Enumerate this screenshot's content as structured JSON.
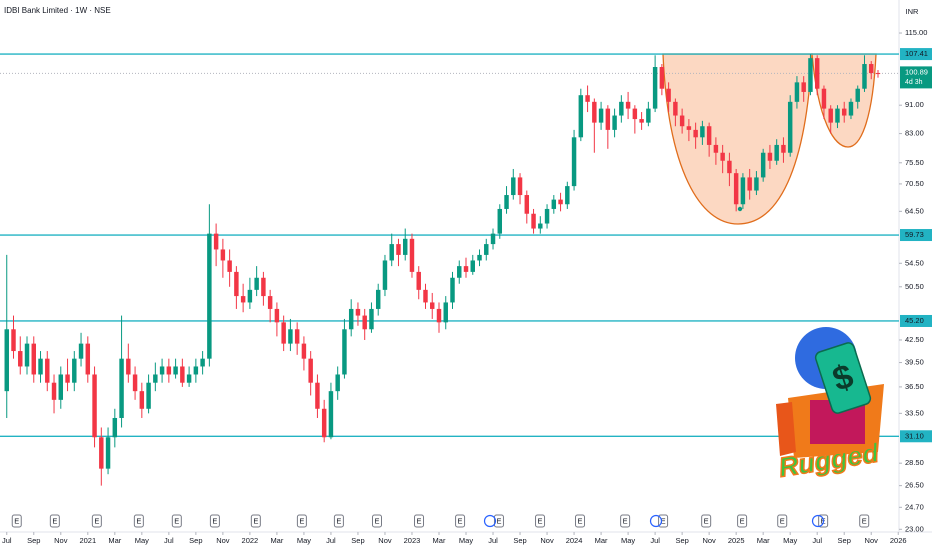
{
  "chart_data": {
    "type": "candlestick",
    "title": "IDBI Bank Limited · 1W · NSE",
    "currency": "INR",
    "x": [
      0,
      0.5,
      1,
      1.5,
      2,
      2.5,
      3,
      3.5,
      4,
      4.5,
      5,
      5.5,
      6,
      6.5,
      7,
      7.5,
      8,
      8.5,
      9,
      9.5,
      10,
      10.5,
      11,
      11.5,
      12,
      12.5,
      13,
      13.5,
      14,
      14.5,
      15,
      15.5,
      16,
      16.5,
      17,
      17.5,
      18,
      18.5,
      19,
      19.5,
      20,
      20.5,
      21,
      21.5,
      22,
      22.5,
      23,
      23.5,
      24,
      24.5,
      25,
      25.5,
      26,
      26.5,
      27,
      27.5,
      28,
      28.5,
      29,
      29.5,
      30,
      30.5,
      31,
      31.5,
      32,
      32.5,
      33,
      33.5,
      34,
      34.5,
      35,
      35.5,
      36,
      36.5,
      37,
      37.5,
      38,
      38.5,
      39,
      39.5,
      40,
      40.5,
      41,
      41.5,
      42,
      42.5,
      43,
      43.5,
      44,
      44.5,
      45,
      45.5,
      46,
      46.5,
      47,
      47.5,
      48,
      48.5,
      49,
      49.5,
      50,
      50.5,
      51,
      51.5,
      52,
      52.5,
      53,
      53.5,
      54,
      54.5,
      55,
      55.5,
      56,
      56.5,
      57,
      57.5,
      58,
      58.5,
      59,
      59.5,
      60,
      60.5,
      61,
      61.5,
      62,
      62.5,
      63,
      63.5,
      64,
      64.5
    ],
    "open": [
      36,
      44,
      41,
      39,
      42,
      38,
      40,
      37,
      35,
      38,
      37,
      40,
      42,
      38,
      31,
      28,
      31,
      33,
      40,
      38,
      36,
      34,
      37,
      38,
      39,
      38,
      39,
      37,
      38,
      39,
      40,
      60,
      57,
      55,
      53,
      49,
      48,
      50,
      52,
      49,
      47,
      45,
      42,
      44,
      42,
      40,
      37,
      34,
      31,
      36,
      38,
      44,
      47,
      46,
      44,
      47,
      50,
      55,
      58,
      56,
      59,
      53,
      50,
      48,
      47,
      45,
      48,
      52,
      54,
      53,
      55,
      56,
      58,
      60,
      65,
      68,
      72,
      68,
      64,
      61,
      62,
      65,
      67,
      66,
      70,
      82,
      94,
      92,
      86,
      90,
      84,
      88,
      92,
      90,
      87,
      86,
      90,
      103,
      96,
      92,
      88,
      85,
      84,
      82,
      85,
      80,
      78,
      76,
      73,
      66,
      72,
      69,
      72,
      78,
      76,
      80,
      78,
      92,
      98,
      95,
      106,
      96,
      90,
      86,
      90,
      88,
      92,
      96,
      104,
      101
    ],
    "high": [
      56,
      46,
      43,
      43,
      43,
      41,
      41,
      38,
      39,
      40,
      41,
      43.5,
      43,
      39,
      32,
      32,
      34,
      46,
      42,
      39,
      37,
      38,
      39.5,
      40,
      40,
      40,
      40,
      39,
      40,
      41,
      66,
      62,
      59,
      57,
      54,
      51,
      52,
      54,
      53,
      50,
      48,
      46,
      45.5,
      45,
      43,
      41,
      38,
      35,
      37,
      39,
      45.5,
      48.5,
      48,
      47,
      48,
      51,
      56,
      60,
      59,
      61,
      60,
      54,
      51,
      49.5,
      48,
      49,
      53,
      55,
      55.5,
      56,
      57,
      59,
      61,
      66,
      70,
      74,
      73,
      69,
      65,
      63.5,
      66,
      68,
      68.5,
      71,
      84,
      96,
      97,
      93,
      92,
      91,
      90,
      94,
      95,
      91,
      89,
      92,
      107,
      104,
      98,
      93,
      90,
      87,
      86,
      86.5,
      86,
      82,
      80,
      78,
      74,
      73,
      74,
      73.5,
      79,
      80,
      81.5,
      82,
      94,
      100,
      100,
      107.41,
      107,
      97,
      91,
      91,
      92,
      93,
      97,
      107,
      105,
      102
    ],
    "low": [
      33,
      40,
      38,
      38,
      37,
      37,
      36,
      33.5,
      34,
      36,
      36,
      39,
      37,
      30,
      26.5,
      27.5,
      30,
      32,
      37,
      35,
      33,
      33.5,
      36,
      37,
      37,
      37.5,
      36.5,
      36.5,
      37,
      38,
      39,
      54,
      52,
      50.5,
      47,
      46.5,
      47,
      49,
      47.5,
      45,
      43,
      41,
      41,
      40.5,
      38.5,
      35.5,
      33,
      30.5,
      30.8,
      35,
      37.5,
      43,
      44.5,
      42.5,
      43.5,
      46,
      49,
      54,
      54,
      55,
      52,
      48.5,
      47,
      45.5,
      43.5,
      44,
      47,
      51,
      52,
      52.5,
      54,
      55,
      57,
      59,
      64,
      67,
      66,
      62,
      60,
      60,
      61,
      64,
      64.5,
      65,
      69,
      81,
      89,
      78,
      84,
      79,
      82,
      86,
      87,
      83,
      84,
      85,
      89,
      94,
      89,
      85,
      83,
      81,
      79,
      80,
      77,
      75,
      73,
      70,
      64.5,
      65,
      67,
      68,
      71,
      74,
      75,
      75.5,
      77,
      90,
      92,
      94,
      94,
      87,
      83,
      84.5,
      86,
      87,
      90,
      95,
      99,
      99.5
    ],
    "close": [
      44,
      41,
      39,
      42,
      38,
      40,
      37,
      35,
      38,
      37,
      40,
      42,
      38,
      31,
      28,
      31,
      33,
      40,
      38,
      36,
      34,
      37,
      38,
      39,
      38,
      39,
      37,
      38,
      39,
      40,
      60,
      57,
      55,
      53,
      49,
      48,
      50,
      52,
      49,
      47,
      45,
      42,
      44,
      42,
      40,
      37,
      34,
      31,
      36,
      38,
      44,
      47,
      46,
      44,
      47,
      50,
      55,
      58,
      56,
      59,
      53,
      50,
      48,
      47,
      45,
      48,
      52,
      54,
      53,
      55,
      56,
      58,
      60,
      65,
      68,
      72,
      68,
      64,
      61,
      62,
      65,
      67,
      66,
      70,
      82,
      94,
      92,
      86,
      90,
      84,
      88,
      92,
      90,
      87,
      86,
      90,
      103,
      96,
      92,
      88,
      85,
      84,
      82,
      85,
      80,
      78,
      76,
      73,
      66,
      72,
      69,
      72,
      78,
      76,
      80,
      78,
      92,
      98,
      95,
      106,
      96,
      90,
      86,
      90,
      88,
      92,
      96,
      104,
      101,
      100.89
    ],
    "up_color": "#089981",
    "down_color": "#f23645",
    "xlim": [
      -0.5,
      66.1
    ],
    "xticks": [
      {
        "value": 0,
        "label": "Jul"
      },
      {
        "value": 2,
        "label": "Sep"
      },
      {
        "value": 4,
        "label": "Nov"
      },
      {
        "value": 6,
        "label": "2021"
      },
      {
        "value": 8,
        "label": "Mar"
      },
      {
        "value": 10,
        "label": "May"
      },
      {
        "value": 12,
        "label": "Jul"
      },
      {
        "value": 14,
        "label": "Sep"
      },
      {
        "value": 16,
        "label": "Nov"
      },
      {
        "value": 18,
        "label": "2022"
      },
      {
        "value": 20,
        "label": "Mar"
      },
      {
        "value": 22,
        "label": "May"
      },
      {
        "value": 24,
        "label": "Jul"
      },
      {
        "value": 26,
        "label": "Sep"
      },
      {
        "value": 28,
        "label": "Nov"
      },
      {
        "value": 30,
        "label": "2023"
      },
      {
        "value": 32,
        "label": "Mar"
      },
      {
        "value": 34,
        "label": "May"
      },
      {
        "value": 36,
        "label": "Jul"
      },
      {
        "value": 38,
        "label": "Sep"
      },
      {
        "value": 40,
        "label": "Nov"
      },
      {
        "value": 42,
        "label": "2024"
      },
      {
        "value": 44,
        "label": "Mar"
      },
      {
        "value": 46,
        "label": "May"
      },
      {
        "value": 48,
        "label": "Jul"
      },
      {
        "value": 50,
        "label": "Sep"
      },
      {
        "value": 52,
        "label": "Nov"
      },
      {
        "value": 54,
        "label": "2025"
      },
      {
        "value": 56,
        "label": "Mar"
      },
      {
        "value": 58,
        "label": "May"
      },
      {
        "value": 60,
        "label": "Jul"
      },
      {
        "value": 62,
        "label": "Sep"
      },
      {
        "value": 64,
        "label": "Nov"
      },
      {
        "value": 66,
        "label": "2026"
      }
    ],
    "ylim": [
      22.8,
      128
    ],
    "yscale": "log",
    "yticks": [
      {
        "value": 115,
        "label": "115.00"
      },
      {
        "value": 91,
        "label": "91.00"
      },
      {
        "value": 83,
        "label": "83.00"
      },
      {
        "value": 75.5,
        "label": "75.50"
      },
      {
        "value": 70.5,
        "label": "70.50"
      },
      {
        "value": 64.5,
        "label": "64.50"
      },
      {
        "value": 54.5,
        "label": "54.50"
      },
      {
        "value": 50.5,
        "label": "50.50"
      },
      {
        "value": 42.5,
        "label": "42.50"
      },
      {
        "value": 39.5,
        "label": "39.50"
      },
      {
        "value": 36.5,
        "label": "36.50"
      },
      {
        "value": 33.5,
        "label": "33.50"
      },
      {
        "value": 28.5,
        "label": "28.50"
      },
      {
        "value": 26.5,
        "label": "26.50"
      },
      {
        "value": 24.7,
        "label": "24.70"
      },
      {
        "value": 23,
        "label": "23.00"
      }
    ],
    "level_color": "#22b3c3",
    "levels": [
      107.41,
      59.73,
      {
        "value": 45.2,
        "label": "45.20"
      },
      {
        "value": 31.1,
        "label": "31.10"
      }
    ],
    "last_price": {
      "value": 100.89,
      "countdown": "4d 3h"
    },
    "earnings": {
      "label": "E",
      "x": [
        0.74,
        3.56,
        6.67,
        9.78,
        12.59,
        15.41,
        18.44,
        21.85,
        24.59,
        27.41,
        30.52,
        33.56,
        36.44,
        39.48,
        42.44,
        45.78,
        48.59,
        51.78,
        54.44,
        57.41,
        60.44,
        63.48
      ]
    }
  },
  "watermark": {
    "symbol": "$",
    "text": "Rugged"
  }
}
